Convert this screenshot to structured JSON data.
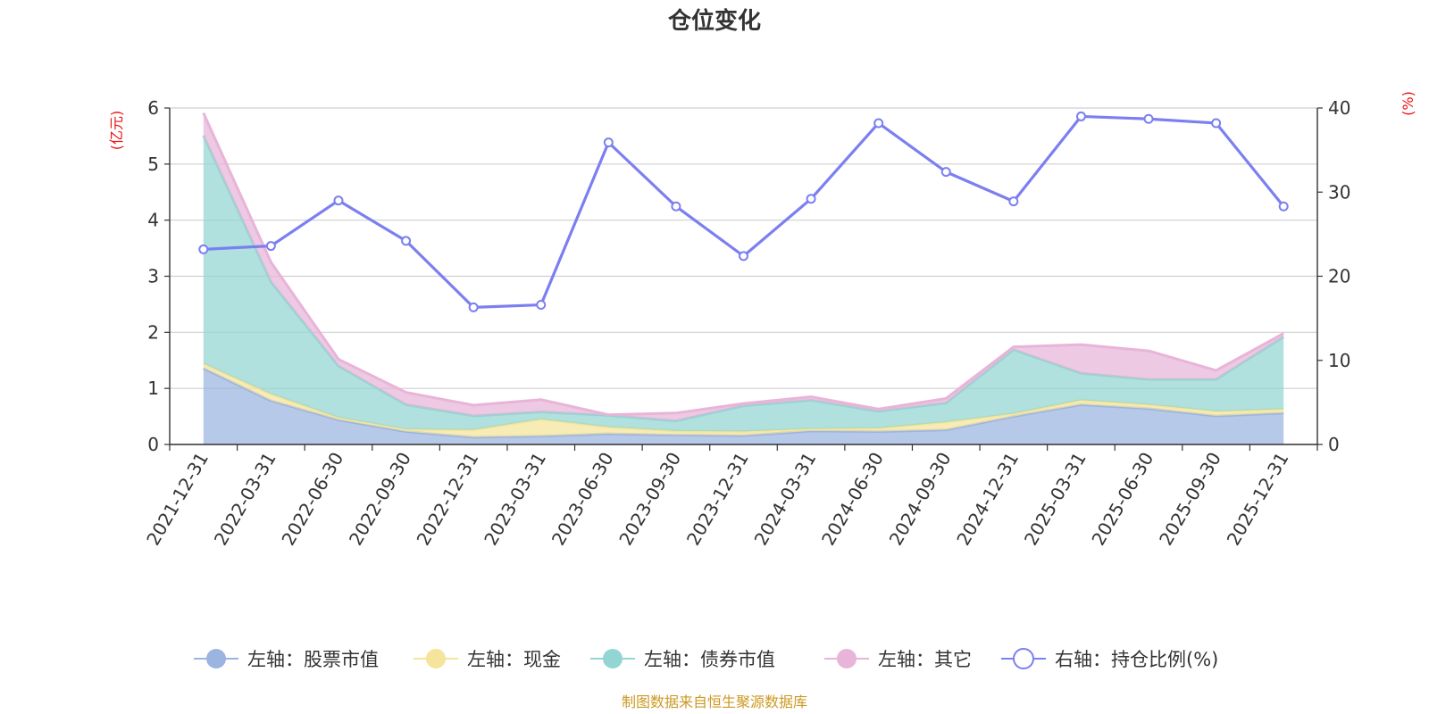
{
  "chart_data": {
    "type": "area",
    "title": "仓位变化",
    "source": "制图数据来自恒生聚源数据库",
    "left_axis": {
      "unit": "(亿元)",
      "ylim": [
        0,
        6
      ],
      "ticks": [
        "0",
        "1",
        "2",
        "3",
        "4",
        "5",
        "6"
      ]
    },
    "right_axis": {
      "unit": "(%)",
      "ylim": [
        0,
        40
      ],
      "ticks": [
        "0",
        "10",
        "20",
        "30",
        "40"
      ]
    },
    "categories": [
      "2021-12-31",
      "2022-03-31",
      "2022-06-30",
      "2022-09-30",
      "2022-12-31",
      "2023-03-31",
      "2023-06-30",
      "2023-09-30",
      "2023-12-31",
      "2024-03-31",
      "2024-06-30",
      "2024-09-30",
      "2024-12-31",
      "2025-03-31",
      "2025-06-30",
      "2025-09-30",
      "2025-12-31"
    ],
    "grid": true,
    "legend_position": "bottom",
    "series": [
      {
        "name": "左轴：股票市值",
        "axis": "left",
        "kind": "stacked-area",
        "color": "#9bb4e0",
        "values": [
          1.36,
          0.78,
          0.44,
          0.23,
          0.13,
          0.15,
          0.19,
          0.17,
          0.16,
          0.24,
          0.23,
          0.26,
          0.5,
          0.71,
          0.64,
          0.51,
          0.56
        ]
      },
      {
        "name": "左轴：现金",
        "axis": "left",
        "kind": "stacked-area",
        "color": "#f5e49a",
        "values": [
          0.08,
          0.12,
          0.04,
          0.04,
          0.13,
          0.3,
          0.12,
          0.07,
          0.07,
          0.04,
          0.06,
          0.14,
          0.05,
          0.08,
          0.07,
          0.08,
          0.07
        ]
      },
      {
        "name": "左轴：债券市值",
        "axis": "left",
        "kind": "stacked-area",
        "color": "#93d5d2",
        "values": [
          4.07,
          2.0,
          0.92,
          0.44,
          0.25,
          0.13,
          0.21,
          0.18,
          0.46,
          0.51,
          0.3,
          0.34,
          1.14,
          0.48,
          0.45,
          0.57,
          1.29
        ]
      },
      {
        "name": "左轴：其它",
        "axis": "left",
        "kind": "stacked-area",
        "color": "#e8b4d8",
        "values": [
          0.4,
          0.35,
          0.12,
          0.22,
          0.19,
          0.22,
          0.01,
          0.14,
          0.04,
          0.06,
          0.04,
          0.08,
          0.05,
          0.51,
          0.51,
          0.16,
          0.06
        ]
      },
      {
        "name": "右轴：持仓比例(%)",
        "axis": "right",
        "kind": "line",
        "color": "#7b7ff0",
        "values": [
          23.2,
          23.6,
          29.0,
          24.2,
          16.3,
          16.6,
          35.9,
          28.3,
          22.4,
          29.2,
          38.2,
          32.4,
          28.9,
          39.0,
          38.7,
          38.2,
          28.3
        ]
      }
    ]
  }
}
